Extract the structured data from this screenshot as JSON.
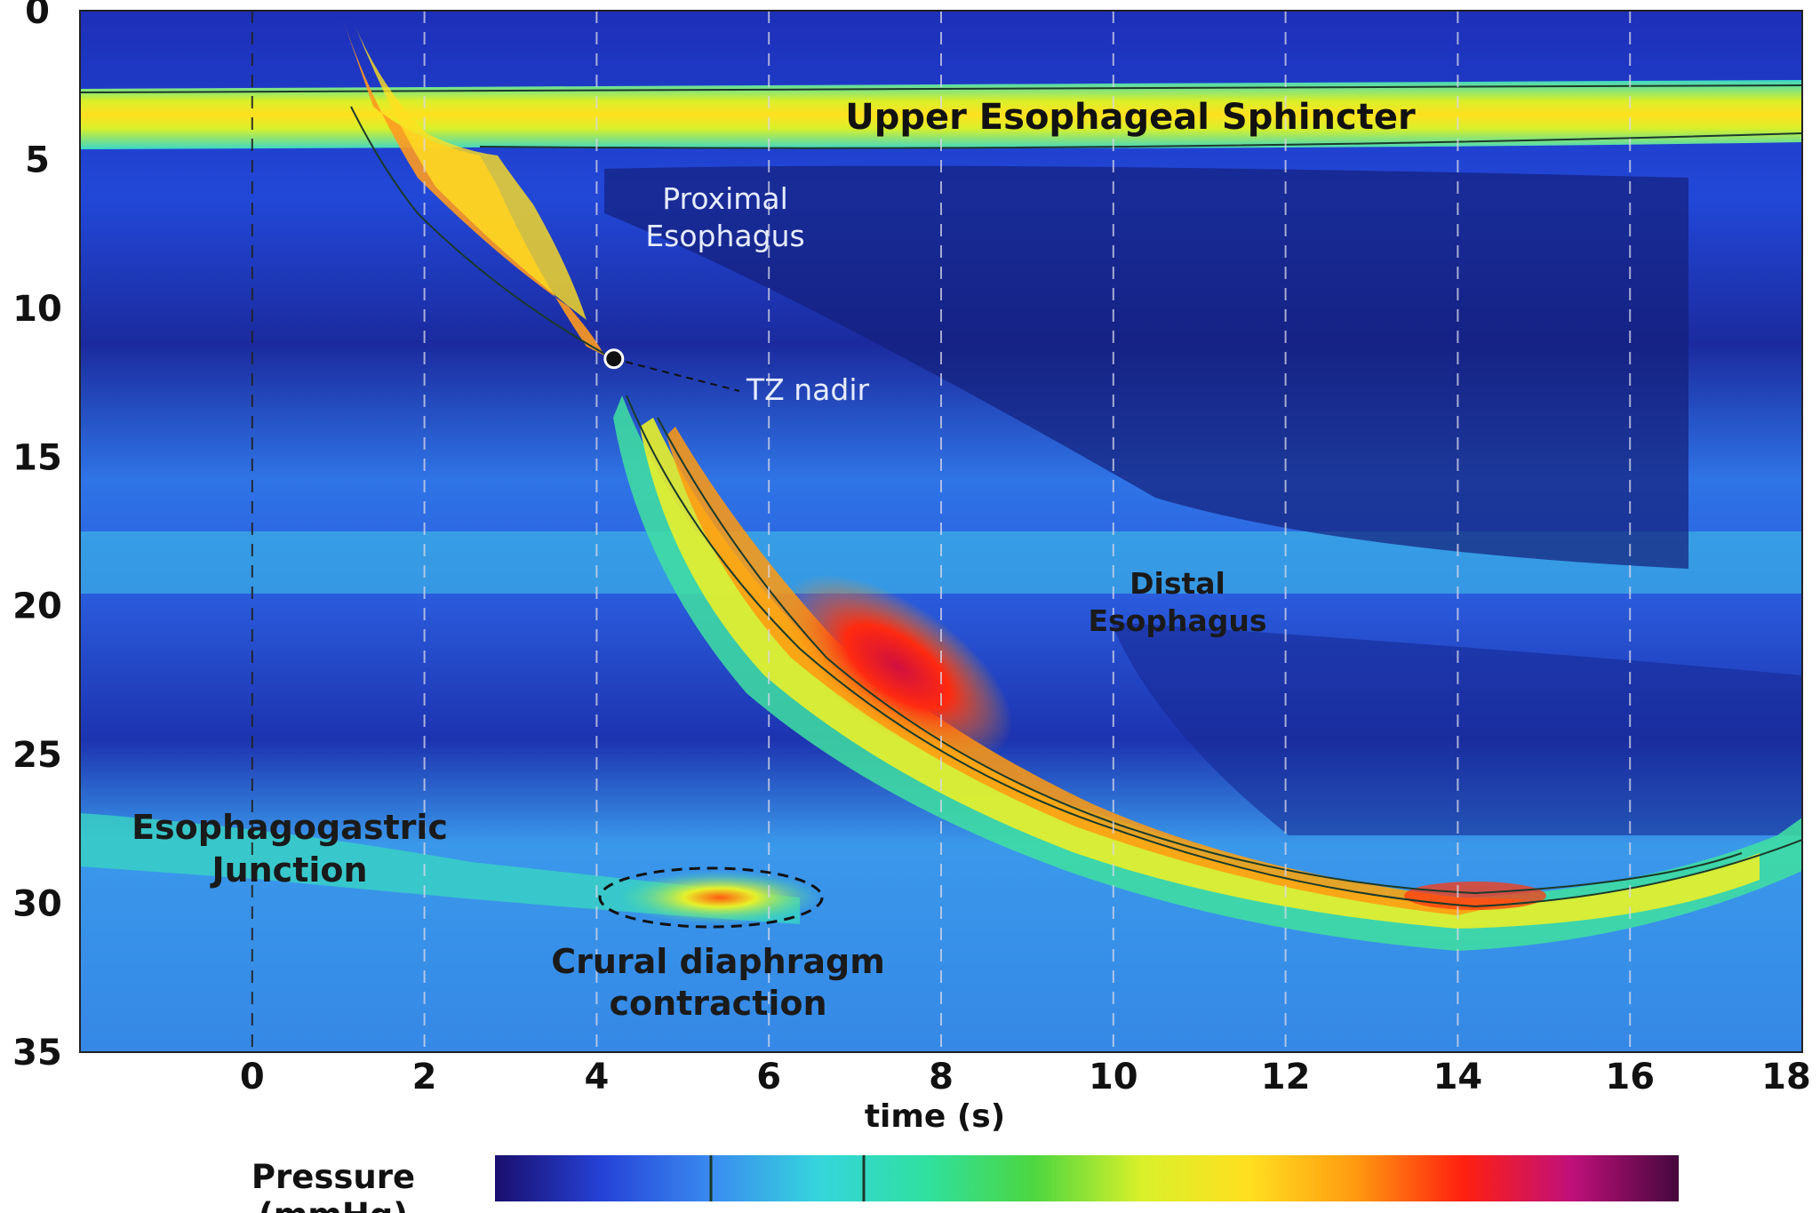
{
  "chart_data": {
    "type": "heatmap",
    "title": "",
    "xlabel": "time (s)",
    "ylabel": "",
    "xlim": [
      -2,
      18
    ],
    "ylim": [
      35,
      0
    ],
    "x_ticks": [
      "0",
      "2",
      "4",
      "6",
      "8",
      "10",
      "12",
      "14",
      "16",
      "18"
    ],
    "y_ticks": [
      "0",
      "5",
      "10",
      "15",
      "20",
      "25",
      "30",
      "35"
    ],
    "x_tick_values": [
      0,
      2,
      4,
      6,
      8,
      10,
      12,
      14,
      16,
      18
    ],
    "y_tick_values": [
      0,
      5,
      10,
      15,
      20,
      25,
      30,
      35
    ],
    "dashed_time_markers": [
      0,
      2,
      4,
      6,
      8,
      10,
      12,
      14,
      16
    ],
    "colorbar": {
      "label": "Pressure",
      "label_line2": "(mmHg)",
      "colors": [
        "#1a0f6e",
        "#2643d8",
        "#3a8af0",
        "#35d5dc",
        "#2fe0a0",
        "#4cd640",
        "#d8f02a",
        "#ffe020",
        "#ff9a10",
        "#ff2010",
        "#c0107a",
        "#45083e"
      ],
      "contour_marks": 2
    },
    "annotations": {
      "ues": "Upper Esophageal Sphincter",
      "proximal_line1": "Proximal",
      "proximal_line2": "Esophagus",
      "tz": "TZ nadir",
      "distal_line1": "Distal",
      "distal_line2": "Esophagus",
      "egj_line1": "Esophagogastric",
      "egj_line2": "Junction",
      "crural_line1": "Crural diaphragm",
      "crural_line2": "contraction"
    },
    "tz_nadir_point": {
      "x": 4.2,
      "y": 11.7
    },
    "swallow_path": [
      {
        "x": 1.0,
        "y": 0.5
      },
      {
        "x": 1.4,
        "y": 3.5
      },
      {
        "x": 2.0,
        "y": 6.5
      },
      {
        "x": 3.0,
        "y": 8.8
      },
      {
        "x": 4.2,
        "y": 11.7
      },
      {
        "x": 5.0,
        "y": 14.5
      },
      {
        "x": 6.0,
        "y": 17.5
      },
      {
        "x": 7.5,
        "y": 22.0
      },
      {
        "x": 9.0,
        "y": 25.0
      },
      {
        "x": 11.0,
        "y": 27.5
      },
      {
        "x": 13.0,
        "y": 29.5
      },
      {
        "x": 14.5,
        "y": 30.3
      },
      {
        "x": 16.5,
        "y": 29.5
      },
      {
        "x": 18.0,
        "y": 28.5
      }
    ]
  }
}
